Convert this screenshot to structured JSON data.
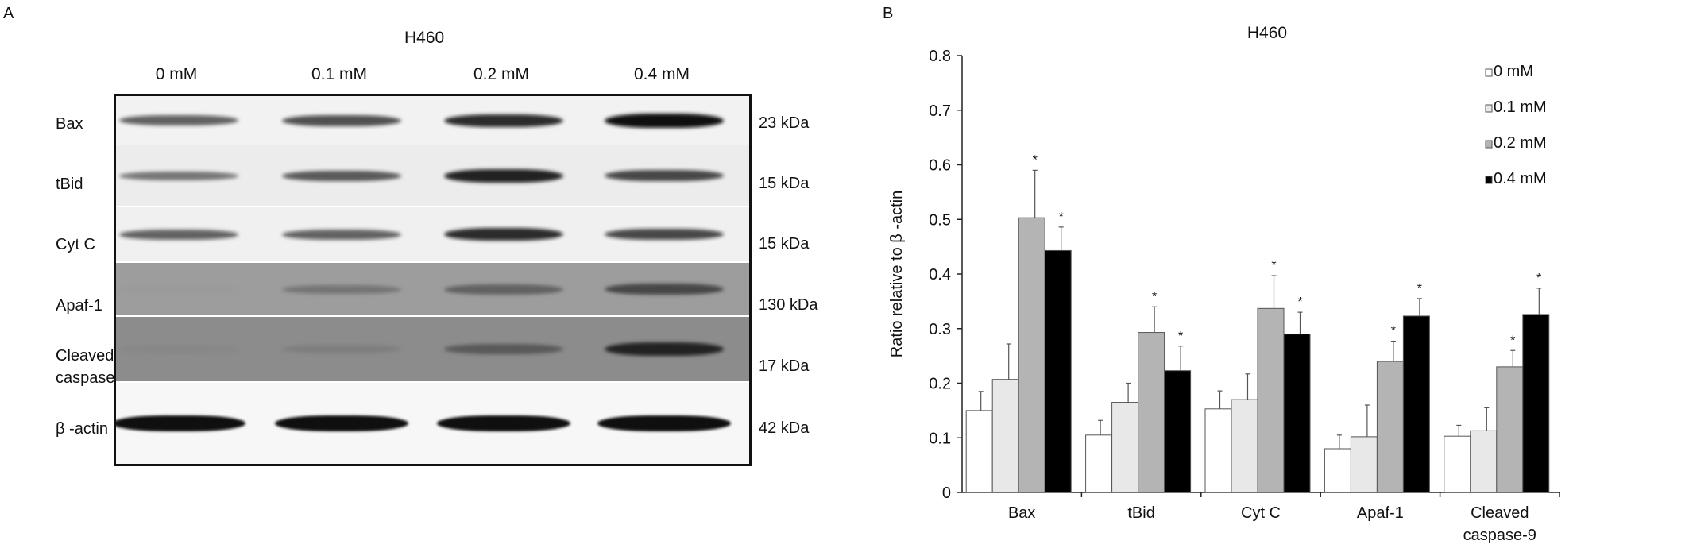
{
  "panel_a": {
    "label": "A",
    "title": "H460",
    "concentrations": [
      "0 mM",
      "0.1 mM",
      "0.2 mM",
      "0.4 mM"
    ],
    "rows": [
      {
        "protein": "Bax",
        "kda": "23 kDa",
        "intensity": [
          0.55,
          0.65,
          0.85,
          1.0
        ]
      },
      {
        "protein": "tBid",
        "kda": "15 kDa",
        "intensity": [
          0.45,
          0.6,
          0.9,
          0.7
        ]
      },
      {
        "protein": "Cyt C",
        "kda": "15 kDa",
        "intensity": [
          0.55,
          0.55,
          0.85,
          0.7
        ]
      },
      {
        "protein": "Apaf-1",
        "kda": "130 kDa",
        "intensity": [
          0.25,
          0.45,
          0.55,
          0.7
        ]
      },
      {
        "protein": "Cleaved\ncaspase-9",
        "kda": "17 kDa",
        "intensity": [
          0.35,
          0.4,
          0.6,
          0.9
        ]
      },
      {
        "protein": "β -actin",
        "kda": "42 kDa",
        "intensity": [
          1.0,
          1.0,
          1.0,
          1.0
        ]
      }
    ]
  },
  "panel_b": {
    "label": "B"
  },
  "chart_data": {
    "type": "bar",
    "title": "H460",
    "ylabel": "Ratio relative to β -actin",
    "xlabel": "",
    "ylim": [
      0,
      0.8
    ],
    "yticks": [
      "0",
      "0.1",
      "0.2",
      "0.3",
      "0.4",
      "0.5",
      "0.6",
      "0.7",
      "0.8"
    ],
    "categories": [
      "Bax",
      "tBid",
      "Cyt C",
      "Apaf-1",
      "Cleaved\ncaspase-9"
    ],
    "series": [
      {
        "name": "0 mM",
        "color": "#ffffff",
        "values": [
          0.15,
          0.105,
          0.153,
          0.08,
          0.103
        ],
        "errors": [
          0.035,
          0.027,
          0.033,
          0.025,
          0.02
        ],
        "significant": [
          false,
          false,
          false,
          false,
          false
        ]
      },
      {
        "name": "0.1 mM",
        "color": "#e8e8e8",
        "values": [
          0.207,
          0.165,
          0.17,
          0.102,
          0.113
        ],
        "errors": [
          0.065,
          0.035,
          0.047,
          0.058,
          0.042
        ],
        "significant": [
          false,
          false,
          false,
          false,
          false
        ]
      },
      {
        "name": "0.2 mM",
        "color": "#b4b4b4",
        "values": [
          0.503,
          0.293,
          0.337,
          0.24,
          0.23
        ],
        "errors": [
          0.087,
          0.047,
          0.06,
          0.037,
          0.03
        ],
        "significant": [
          true,
          true,
          true,
          true,
          true
        ]
      },
      {
        "name": "0.4 mM",
        "color": "#000000",
        "values": [
          0.443,
          0.223,
          0.29,
          0.323,
          0.326
        ],
        "errors": [
          0.043,
          0.045,
          0.04,
          0.032,
          0.048
        ],
        "significant": [
          true,
          true,
          true,
          true,
          true
        ]
      }
    ],
    "significance_marker": "*",
    "legend_position": "top-right",
    "grid": false
  }
}
